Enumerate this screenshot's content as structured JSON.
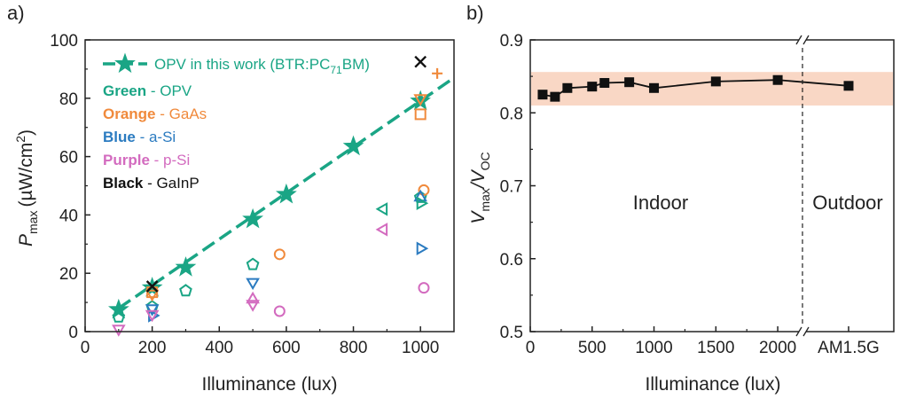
{
  "colors": {
    "green": "#1aa585",
    "orange": "#f08a3c",
    "blue": "#2b7bc0",
    "purple": "#d36bbf",
    "black": "#111111",
    "band": "#f7c9b2"
  },
  "chart_data": [
    {
      "panel_label": "a)",
      "type": "scatter",
      "xlabel": "Illuminance (lux)",
      "ylabel_main": "P",
      "ylabel_sub": "max",
      "ylabel_unit_pre": "(µW/cm",
      "ylabel_unit_sup": "2",
      "ylabel_unit_post": ")",
      "xlim": [
        0,
        1100
      ],
      "ylim": [
        0,
        100
      ],
      "xticks": [
        "0",
        "200",
        "400",
        "600",
        "800",
        "1000"
      ],
      "yticks": [
        "0",
        "20",
        "40",
        "60",
        "80",
        "100"
      ],
      "grid": false,
      "legend": {
        "fit_label_pre": "OPV in this work (BTR:PC",
        "fit_label_sub": "71",
        "fit_label_post": "BM)",
        "entries": [
          {
            "bold": "Green",
            "text": "- OPV",
            "color": "green"
          },
          {
            "bold": "Orange",
            "text": "- GaAs",
            "color": "orange"
          },
          {
            "bold": "Blue",
            "text": "- a-Si",
            "color": "blue"
          },
          {
            "bold": "Purple",
            "text": "- p-Si",
            "color": "purple"
          },
          {
            "bold": "Black",
            "text": "- GaInP",
            "color": "black"
          }
        ]
      },
      "fit_line": {
        "color": "green",
        "x": [
          100,
          1100
        ],
        "y": [
          8,
          87
        ]
      },
      "series": [
        {
          "color": "green",
          "marker": "star",
          "x": [
            100,
            200,
            300,
            500,
            600,
            800,
            1000
          ],
          "y": [
            7.5,
            15,
            22,
            38.5,
            47,
            63.5,
            79
          ]
        },
        {
          "color": "green",
          "marker": "pentagon",
          "x": [
            100,
            200,
            300,
            500,
            1000
          ],
          "y": [
            5,
            8.5,
            14,
            23,
            46
          ]
        },
        {
          "color": "orange",
          "marker": "square",
          "x": [
            200,
            1000
          ],
          "y": [
            13.5,
            74.5
          ]
        },
        {
          "color": "orange",
          "marker": "circle",
          "x": [
            580,
            1010
          ],
          "y": [
            26.5,
            48.5
          ]
        },
        {
          "color": "orange",
          "marker": "plus",
          "x": [
            1050
          ],
          "y": [
            88.5
          ]
        },
        {
          "color": "orange",
          "marker": "triangle-down",
          "x": [
            200,
            1000
          ],
          "y": [
            13,
            80
          ]
        },
        {
          "color": "blue",
          "marker": "triangle-down",
          "x": [
            200,
            500
          ],
          "y": [
            8,
            17
          ]
        },
        {
          "color": "blue",
          "marker": "triangle-right",
          "x": [
            200,
            1000
          ],
          "y": [
            5.5,
            28.5
          ]
        },
        {
          "color": "blue",
          "marker": "triangle-up",
          "x": [
            1000
          ],
          "y": [
            46
          ]
        },
        {
          "color": "green",
          "marker": "triangle-right",
          "x": [
            1000
          ],
          "y": [
            44
          ]
        },
        {
          "color": "purple",
          "marker": "triangle-left",
          "x": [
            890
          ],
          "y": [
            35
          ]
        },
        {
          "color": "green",
          "marker": "triangle-left",
          "x": [
            890
          ],
          "y": [
            42
          ]
        },
        {
          "color": "purple",
          "marker": "triangle-down",
          "x": [
            100,
            200,
            500
          ],
          "y": [
            1,
            6,
            9.5
          ]
        },
        {
          "color": "purple",
          "marker": "triangle-up",
          "x": [
            500
          ],
          "y": [
            11
          ]
        },
        {
          "color": "purple",
          "marker": "circle",
          "x": [
            580,
            1010
          ],
          "y": [
            7,
            15
          ]
        },
        {
          "color": "black",
          "marker": "cross",
          "x": [
            200,
            1000
          ],
          "y": [
            15.5,
            92.5
          ]
        }
      ]
    },
    {
      "panel_label": "b)",
      "type": "line",
      "xlabel": "Illuminance (lux)",
      "ylabel_a": "V",
      "ylabel_a_sub": "max",
      "ylabel_sep": "/V",
      "ylabel_b_sub": "OC",
      "xlim": [
        0,
        2200
      ],
      "ylim": [
        0.5,
        0.9
      ],
      "xticks": [
        "0",
        "500",
        "1000",
        "1500",
        "2000"
      ],
      "extra_xtick": "AM1.5G",
      "yticks": [
        "0.5",
        "0.6",
        "0.7",
        "0.8",
        "0.9"
      ],
      "grid": false,
      "band": [
        0.81,
        0.856
      ],
      "region_left": "Indoor",
      "region_right": "Outdoor",
      "series": [
        {
          "color": "black",
          "marker": "square",
          "x": [
            100,
            200,
            300,
            500,
            600,
            800,
            1000,
            1500,
            2000
          ],
          "y": [
            0.825,
            0.822,
            0.834,
            0.836,
            0.841,
            0.842,
            0.834,
            0.843,
            0.845
          ]
        }
      ],
      "outdoor_point": {
        "label": "AM1.5G",
        "y": 0.837
      }
    }
  ]
}
